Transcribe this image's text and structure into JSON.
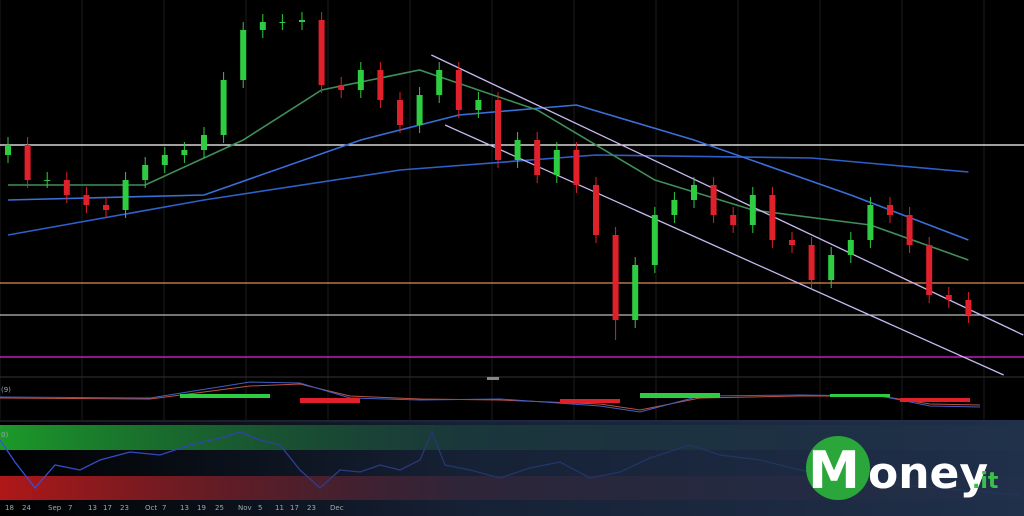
{
  "chart_data": {
    "type": "candlestick",
    "ylim": [
      0,
      370
    ],
    "open": [
      220,
      230,
      195,
      195,
      180,
      170,
      165,
      195,
      210,
      220,
      225,
      240,
      295,
      345,
      353,
      353,
      355,
      290,
      285,
      305,
      275,
      250,
      280,
      305,
      265,
      275,
      215,
      235,
      200,
      225,
      190,
      140,
      55,
      110,
      160,
      175,
      190,
      160,
      150,
      180,
      135,
      130,
      95,
      120,
      135,
      170,
      160,
      130,
      80,
      75
    ],
    "high": [
      238,
      238,
      203,
      203,
      188,
      178,
      203,
      218,
      228,
      233,
      248,
      303,
      353,
      361,
      361,
      363,
      363,
      298,
      313,
      313,
      283,
      288,
      313,
      313,
      283,
      283,
      243,
      243,
      233,
      233,
      198,
      148,
      118,
      168,
      183,
      198,
      198,
      168,
      188,
      188,
      143,
      138,
      128,
      143,
      178,
      178,
      168,
      138,
      88,
      83
    ],
    "low": [
      212,
      187,
      187,
      172,
      162,
      157,
      157,
      187,
      202,
      212,
      217,
      232,
      287,
      337,
      345,
      345,
      282,
      277,
      277,
      267,
      242,
      242,
      272,
      257,
      257,
      207,
      207,
      192,
      192,
      182,
      132,
      35,
      47,
      102,
      152,
      167,
      152,
      142,
      142,
      127,
      122,
      87,
      87,
      112,
      127,
      152,
      122,
      72,
      67,
      52
    ],
    "close": [
      230,
      195,
      195,
      180,
      170,
      165,
      195,
      210,
      220,
      225,
      240,
      295,
      345,
      353,
      353,
      355,
      290,
      285,
      305,
      275,
      250,
      280,
      305,
      265,
      275,
      215,
      235,
      200,
      225,
      190,
      140,
      55,
      110,
      160,
      175,
      190,
      160,
      150,
      180,
      135,
      130,
      95,
      120,
      135,
      170,
      160,
      130,
      80,
      75,
      60
    ],
    "up_color": "#2ecc40",
    "down_color": "#e0202a",
    "moving_averages": [
      {
        "color": "#2f5fc8",
        "x": [
          0,
          10,
          20,
          30,
          41,
          49
        ],
        "values": [
          140,
          175,
          205,
          220,
          217,
          203
        ]
      },
      {
        "color": "#3a6fd8",
        "x": [
          0,
          10,
          18,
          23,
          29,
          35,
          43,
          49
        ],
        "values": [
          175,
          180,
          235,
          260,
          270,
          235,
          180,
          135
        ]
      },
      {
        "color": "#3f8f5a",
        "x": [
          0,
          7,
          12,
          16,
          21,
          27,
          33,
          38,
          44,
          49
        ],
        "values": [
          190,
          190,
          235,
          285,
          305,
          265,
          195,
          165,
          150,
          115
        ]
      }
    ],
    "trendlines": [
      {
        "color": "#c9b8f0",
        "x": [
          21.6,
          51.8
        ],
        "values": [
          320,
          40
        ]
      },
      {
        "color": "#c9b8f0",
        "x": [
          22.3,
          50.8
        ],
        "values": [
          250,
          0
        ]
      }
    ],
    "levels": [
      {
        "color": "#ffffff",
        "value": 230
      },
      {
        "color": "#e08a50",
        "value": 92
      },
      {
        "color": "#bbbbbb",
        "value": 60
      },
      {
        "color": "#e020e0",
        "value": 18
      }
    ],
    "panel_labels": [
      "(9)",
      "0)"
    ],
    "x_labels": [
      "18",
      "24",
      "Sep",
      "7",
      "13",
      "17",
      "23",
      "Oct",
      "7",
      "13",
      "19",
      "25",
      "Nov",
      "5",
      "11",
      "17",
      "23",
      "Dec"
    ]
  },
  "logo": {
    "initial": "M",
    "word": "oney",
    "suffix": ".it"
  }
}
